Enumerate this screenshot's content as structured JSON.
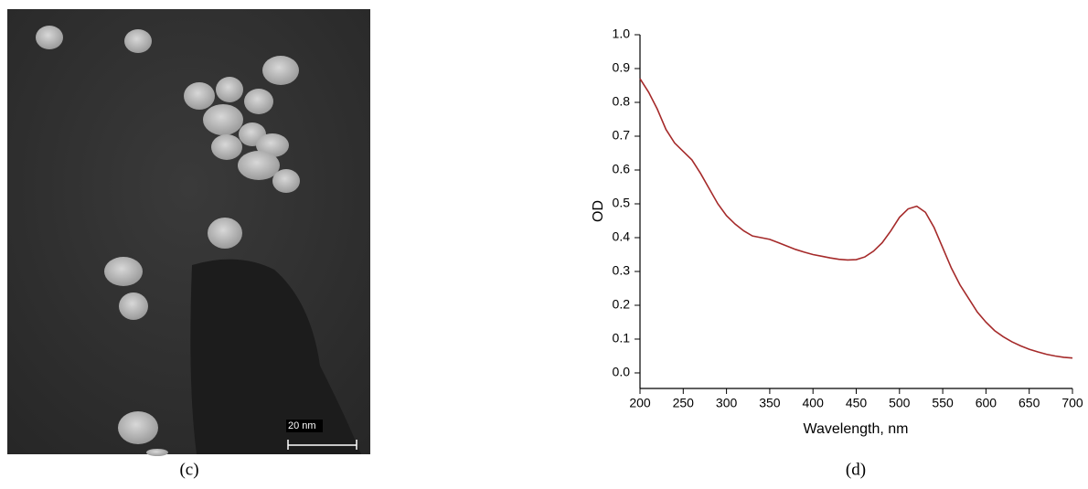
{
  "panel_left": {
    "label": "(c)",
    "scale_bar": "20 nm"
  },
  "panel_right": {
    "label": "(d)"
  },
  "chart_data": {
    "type": "line",
    "xlabel": "Wavelength, nm",
    "ylabel": "OD",
    "xlim": [
      200,
      700
    ],
    "ylim": [
      -0.046,
      1.0
    ],
    "xticks": [
      200,
      250,
      300,
      350,
      400,
      450,
      500,
      550,
      600,
      650,
      700
    ],
    "yticks": [
      {
        "value": 0,
        "label": "0.0"
      },
      0.1,
      0.2,
      0.3,
      0.4,
      0.5,
      0.6,
      0.7,
      0.8,
      0.9,
      {
        "value": 1,
        "label": "1.0"
      }
    ],
    "x": [
      200,
      210,
      220,
      230,
      240,
      250,
      260,
      270,
      280,
      290,
      300,
      310,
      320,
      330,
      340,
      350,
      360,
      370,
      380,
      390,
      400,
      410,
      420,
      430,
      440,
      450,
      460,
      470,
      480,
      490,
      500,
      510,
      520,
      530,
      540,
      550,
      560,
      570,
      580,
      590,
      600,
      610,
      620,
      630,
      640,
      650,
      660,
      670,
      680,
      690,
      700
    ],
    "series": [
      {
        "color": "#a52a2a",
        "values": [
          0.87,
          0.83,
          0.78,
          0.72,
          0.68,
          0.655,
          0.63,
          0.59,
          0.545,
          0.5,
          0.465,
          0.44,
          0.42,
          0.405,
          0.4,
          0.395,
          0.385,
          0.375,
          0.365,
          0.357,
          0.35,
          0.345,
          0.34,
          0.336,
          0.334,
          0.335,
          0.343,
          0.36,
          0.385,
          0.42,
          0.46,
          0.485,
          0.493,
          0.475,
          0.43,
          0.37,
          0.31,
          0.26,
          0.22,
          0.18,
          0.15,
          0.125,
          0.107,
          0.092,
          0.08,
          0.07,
          0.062,
          0.055,
          0.05,
          0.046,
          0.044
        ]
      }
    ]
  }
}
